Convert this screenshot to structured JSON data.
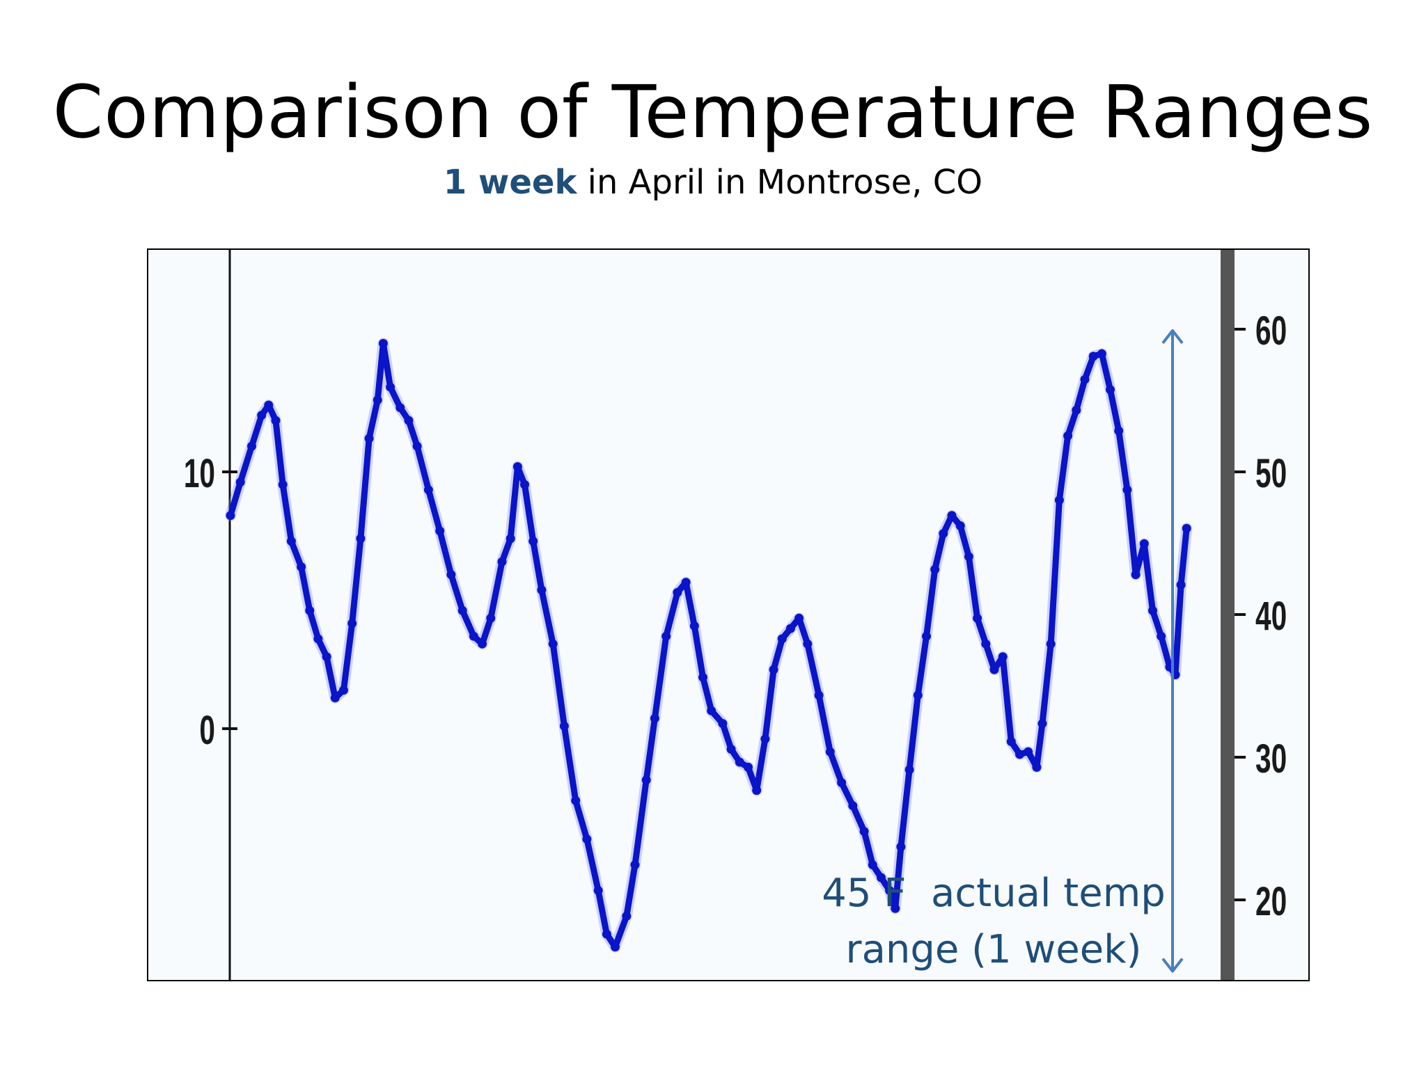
{
  "slide": {
    "title": "Comparison of Temperature Ranges",
    "subtitle_emphasis": "1 week",
    "subtitle_rest": " in April in Montrose, CO"
  },
  "colors": {
    "title": "#000000",
    "subtitle_emphasis": "#1f4e79",
    "series": "#0a14c8",
    "annotation": "#1f4e79",
    "arrow": "#4a7fbf",
    "right_axis_bar": "#555555",
    "plot_bg": "#f8fbfe"
  },
  "chart_data": {
    "type": "line",
    "title": "",
    "xlabel": "",
    "ylabel_left": "",
    "ylabel_right": "",
    "left_axis": {
      "unit": "C",
      "ylim": [
        -10,
        17.5
      ],
      "ticks": [
        10,
        0
      ],
      "tick_labels": [
        "10",
        "0"
      ]
    },
    "right_axis": {
      "unit": "F",
      "ticks": [
        60,
        50,
        40,
        30,
        20
      ],
      "tick_labels": [
        "60",
        "50",
        "40",
        "30",
        "20"
      ]
    },
    "x_range": [
      0,
      7
    ],
    "series": [
      {
        "values": [
          [
            0.0,
            8.3
          ],
          [
            0.07,
            9.6
          ],
          [
            0.15,
            11.0
          ],
          [
            0.22,
            12.2
          ],
          [
            0.27,
            12.6
          ],
          [
            0.32,
            12.0
          ],
          [
            0.37,
            9.5
          ],
          [
            0.43,
            7.3
          ],
          [
            0.5,
            6.3
          ],
          [
            0.56,
            4.6
          ],
          [
            0.62,
            3.5
          ],
          [
            0.68,
            2.8
          ],
          [
            0.74,
            1.2
          ],
          [
            0.8,
            1.5
          ],
          [
            0.86,
            4.1
          ],
          [
            0.92,
            7.4
          ],
          [
            0.98,
            11.3
          ],
          [
            1.04,
            12.8
          ],
          [
            1.08,
            15.0
          ],
          [
            1.13,
            13.3
          ],
          [
            1.2,
            12.5
          ],
          [
            1.26,
            12.0
          ],
          [
            1.32,
            11.0
          ],
          [
            1.4,
            9.3
          ],
          [
            1.48,
            7.7
          ],
          [
            1.56,
            6.0
          ],
          [
            1.64,
            4.6
          ],
          [
            1.72,
            3.6
          ],
          [
            1.78,
            3.3
          ],
          [
            1.84,
            4.3
          ],
          [
            1.92,
            6.5
          ],
          [
            1.98,
            7.4
          ],
          [
            2.03,
            10.2
          ],
          [
            2.08,
            9.5
          ],
          [
            2.14,
            7.3
          ],
          [
            2.2,
            5.4
          ],
          [
            2.28,
            3.3
          ],
          [
            2.36,
            0.1
          ],
          [
            2.44,
            -2.8
          ],
          [
            2.52,
            -4.3
          ],
          [
            2.6,
            -6.3
          ],
          [
            2.66,
            -8.0
          ],
          [
            2.72,
            -8.5
          ],
          [
            2.8,
            -7.3
          ],
          [
            2.86,
            -5.3
          ],
          [
            2.94,
            -2.0
          ],
          [
            3.0,
            0.4
          ],
          [
            3.08,
            3.6
          ],
          [
            3.16,
            5.3
          ],
          [
            3.22,
            5.7
          ],
          [
            3.28,
            4.0
          ],
          [
            3.34,
            2.0
          ],
          [
            3.4,
            0.7
          ],
          [
            3.48,
            0.2
          ],
          [
            3.54,
            -0.8
          ],
          [
            3.6,
            -1.3
          ],
          [
            3.66,
            -1.5
          ],
          [
            3.72,
            -2.4
          ],
          [
            3.78,
            -0.4
          ],
          [
            3.84,
            2.3
          ],
          [
            3.9,
            3.5
          ],
          [
            3.96,
            3.9
          ],
          [
            4.02,
            4.3
          ],
          [
            4.08,
            3.3
          ],
          [
            4.16,
            1.3
          ],
          [
            4.24,
            -0.9
          ],
          [
            4.32,
            -2.1
          ],
          [
            4.4,
            -3.0
          ],
          [
            4.48,
            -4.0
          ],
          [
            4.54,
            -5.3
          ],
          [
            4.6,
            -5.8
          ],
          [
            4.66,
            -6.3
          ],
          [
            4.7,
            -7.0
          ],
          [
            4.74,
            -4.6
          ],
          [
            4.8,
            -1.6
          ],
          [
            4.86,
            1.3
          ],
          [
            4.92,
            3.6
          ],
          [
            4.98,
            6.2
          ],
          [
            5.04,
            7.6
          ],
          [
            5.1,
            8.3
          ],
          [
            5.16,
            7.9
          ],
          [
            5.22,
            6.7
          ],
          [
            5.28,
            4.3
          ],
          [
            5.34,
            3.3
          ],
          [
            5.4,
            2.3
          ],
          [
            5.46,
            2.8
          ],
          [
            5.52,
            -0.5
          ],
          [
            5.58,
            -1.0
          ],
          [
            5.64,
            -0.9
          ],
          [
            5.7,
            -1.5
          ],
          [
            5.74,
            0.2
          ],
          [
            5.8,
            3.3
          ],
          [
            5.86,
            8.9
          ],
          [
            5.92,
            11.4
          ],
          [
            5.98,
            12.4
          ],
          [
            6.04,
            13.6
          ],
          [
            6.1,
            14.5
          ],
          [
            6.16,
            14.6
          ],
          [
            6.22,
            13.2
          ],
          [
            6.28,
            11.6
          ],
          [
            6.34,
            9.3
          ],
          [
            6.4,
            6.0
          ],
          [
            6.46,
            7.2
          ],
          [
            6.52,
            4.6
          ],
          [
            6.58,
            3.6
          ],
          [
            6.64,
            2.4
          ],
          [
            6.68,
            2.1
          ],
          [
            6.72,
            5.6
          ],
          [
            6.76,
            7.8
          ]
        ]
      }
    ],
    "annotations": [
      {
        "type": "double-arrow",
        "from_f": 60,
        "to_f": 15,
        "text_line1": "45 F  actual temp",
        "text_line2": "range (1 week)"
      }
    ]
  }
}
